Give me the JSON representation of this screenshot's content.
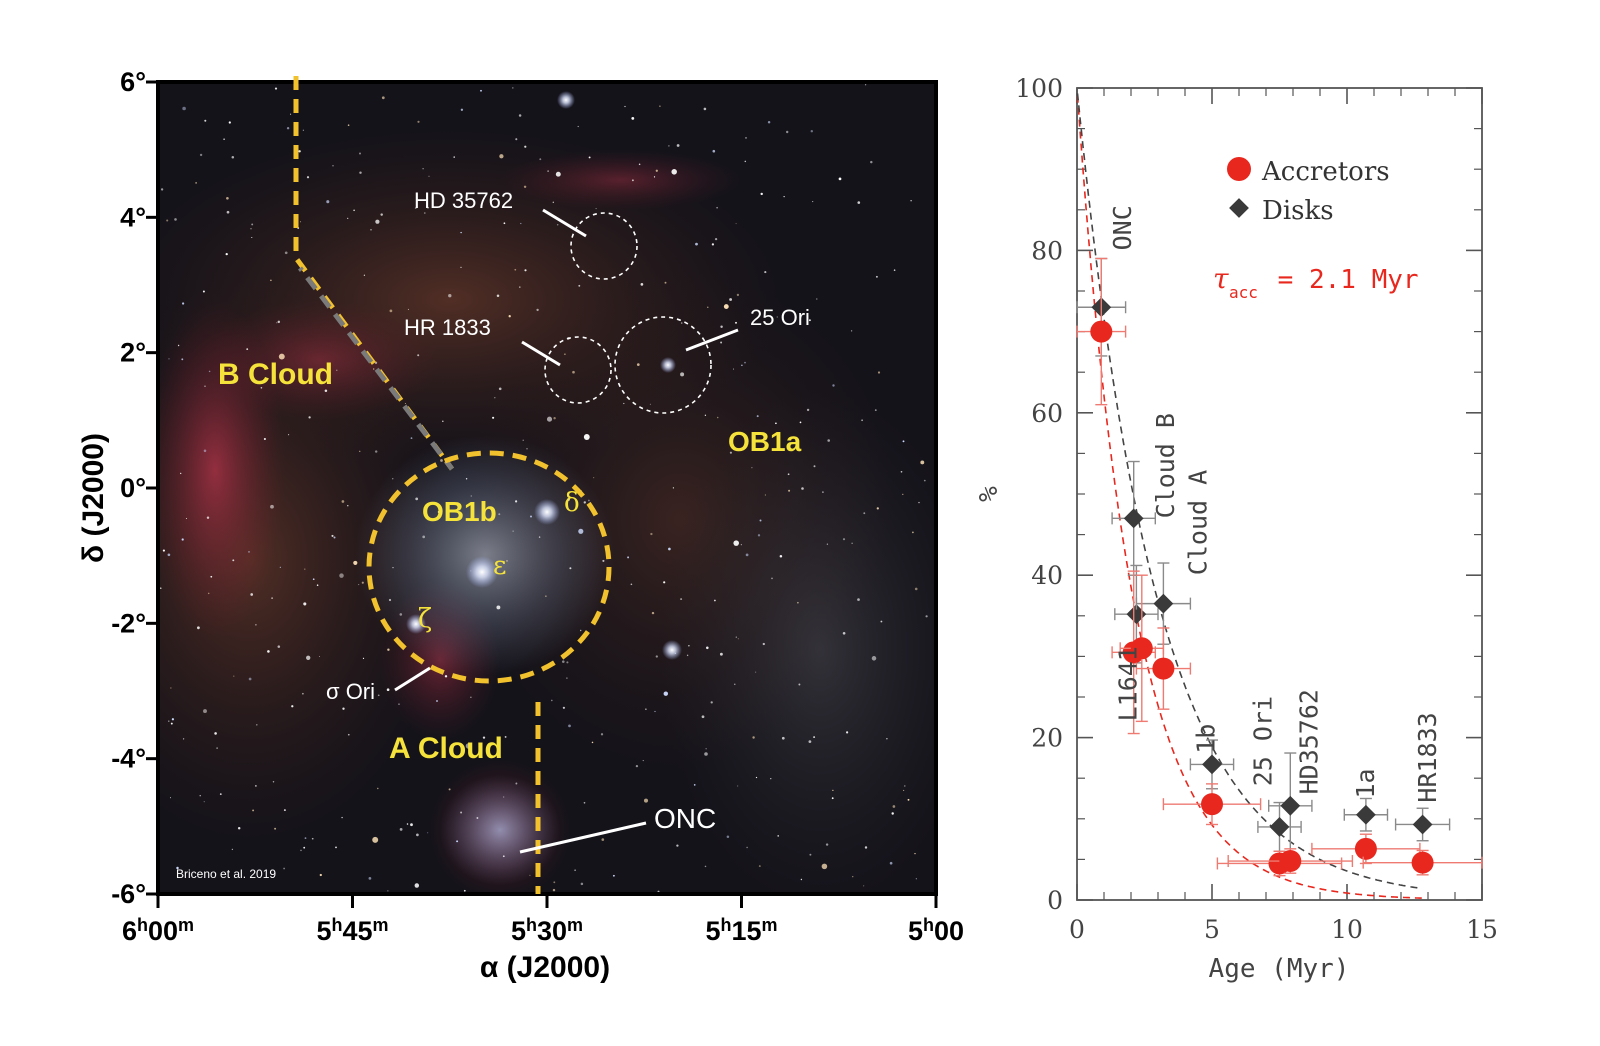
{
  "left_panel": {
    "credit": "Briceno et al. 2019",
    "ylabel": "δ (J2000)",
    "xlabel": "α (J2000)",
    "y_ticks": [
      {
        "label": "6°",
        "dec": 6
      },
      {
        "label": "4°",
        "dec": 4
      },
      {
        "label": "2°",
        "dec": 2
      },
      {
        "label": "0°",
        "dec": 0
      },
      {
        "label": "-2°",
        "dec": -2
      },
      {
        "label": "-4°",
        "dec": -4
      },
      {
        "label": "-6°",
        "dec": -6
      }
    ],
    "x_ticks": [
      {
        "h": "6",
        "m": "00",
        "ra_min": 360
      },
      {
        "h": "5",
        "m": "45",
        "ra_min": 345
      },
      {
        "h": "5",
        "m": "30",
        "ra_min": 330
      },
      {
        "h": "5",
        "m": "15",
        "ra_min": 315
      },
      {
        "h": "5",
        "m": "00",
        "ra_min": 300
      }
    ],
    "region_labels": {
      "b_cloud": "B Cloud",
      "a_cloud": "A Cloud",
      "ob1a": "OB1a",
      "ob1b": "OB1b"
    },
    "object_labels": {
      "hd35762": "HD 35762",
      "hr1833": "HR 1833",
      "ori25": "25 Ori",
      "sigma_ori": "σ Ori",
      "onc": "ONC"
    },
    "star_letters": {
      "delta": "δ",
      "epsilon": "ε",
      "zeta": "ζ"
    },
    "colors": {
      "boundary": "#f2c12e",
      "label_yellow": "#f5e23a",
      "label_white": "#ffffff"
    }
  },
  "chart_data": {
    "type": "scatter",
    "xlabel": "Age (Myr)",
    "ylabel": "%",
    "xlim": [
      0,
      15
    ],
    "ylim": [
      0,
      100
    ],
    "x_ticks": [
      0,
      5,
      10,
      15
    ],
    "y_ticks": [
      0,
      20,
      40,
      60,
      80,
      100
    ],
    "legend_position": "top-right",
    "annotation": {
      "symbol": "τ",
      "subscript": "acc",
      "text": " = 2.1 Myr"
    },
    "series": [
      {
        "name": "Accretors",
        "marker": "circle",
        "color": "#e8281e",
        "points": [
          {
            "x": 0.9,
            "y": 70,
            "xerr": 0.9,
            "yerr": 9
          },
          {
            "x": 2.1,
            "y": 30.5,
            "xerr": 0.8,
            "yerr": 10
          },
          {
            "x": 2.4,
            "y": 31,
            "xerr": 0.8,
            "yerr": 9
          },
          {
            "x": 3.2,
            "y": 28.5,
            "xerr": 1.0,
            "yerr": 5
          },
          {
            "x": 5.0,
            "y": 11.8,
            "xerr": 1.8,
            "yerr": 2.5
          },
          {
            "x": 7.5,
            "y": 4.5,
            "xerr": 2.3,
            "yerr": 1.5
          },
          {
            "x": 7.9,
            "y": 4.8,
            "xerr": 2.3,
            "yerr": 1.5
          },
          {
            "x": 10.7,
            "y": 6.3,
            "xerr": 2.0,
            "yerr": 1.8
          },
          {
            "x": 12.8,
            "y": 4.6,
            "xerr": 2.2,
            "yerr": 1.5
          }
        ]
      },
      {
        "name": "Disks",
        "marker": "diamond",
        "color": "#3a3a3a",
        "points": [
          {
            "x": 0.9,
            "y": 73,
            "xerr": 0.9,
            "yerr": 6
          },
          {
            "x": 2.1,
            "y": 47,
            "xerr": 0.8,
            "yerr": 7
          },
          {
            "x": 2.2,
            "y": 35.2,
            "xerr": 0.8,
            "yerr": 6
          },
          {
            "x": 3.2,
            "y": 36.5,
            "xerr": 1.0,
            "yerr": 5
          },
          {
            "x": 5.0,
            "y": 16.7,
            "xerr": 0.8,
            "yerr": 3
          },
          {
            "x": 7.5,
            "y": 9,
            "xerr": 0.8,
            "yerr": 3
          },
          {
            "x": 7.9,
            "y": 11.6,
            "xerr": 0.8,
            "yerr": 6.5
          },
          {
            "x": 10.7,
            "y": 10.5,
            "xerr": 0.8,
            "yerr": 2
          },
          {
            "x": 12.8,
            "y": 9.3,
            "xerr": 1.0,
            "yerr": 2
          }
        ]
      }
    ],
    "group_labels": [
      {
        "text": "ONC",
        "x": 2.0,
        "y": 80
      },
      {
        "text": "Cloud B",
        "x": 3.6,
        "y": 47
      },
      {
        "text": "Cloud A",
        "x": 4.8,
        "y": 40
      },
      {
        "text": "L1641",
        "x": 2.2,
        "y": 22
      },
      {
        "text": "1b",
        "x": 5.1,
        "y": 18
      },
      {
        "text": "25 Ori",
        "x": 7.2,
        "y": 14
      },
      {
        "text": "HD35762",
        "x": 8.9,
        "y": 13
      },
      {
        "text": "1a",
        "x": 11.0,
        "y": 12.5
      },
      {
        "text": "HR1833",
        "x": 13.3,
        "y": 12
      }
    ],
    "fit_curves": [
      {
        "series": "Accretors",
        "color": "#e8281e",
        "tau": 2.1,
        "amplitude": 100
      },
      {
        "series": "Disks",
        "color": "#444444",
        "tau": 3.0,
        "amplitude": 100
      }
    ]
  }
}
